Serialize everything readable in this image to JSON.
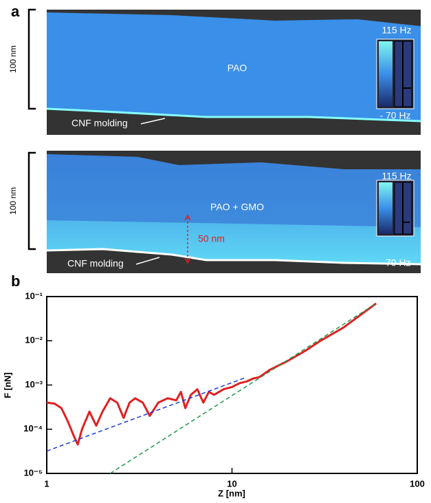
{
  "panel_a": {
    "label": "a",
    "images": [
      {
        "scale": "100 nm",
        "label": "PAO",
        "cbar_max": "115 Hz",
        "cbar_min": "- 70 Hz",
        "substrate": "CNF molding"
      },
      {
        "scale": "100 nm",
        "label": "PAO  + GMO",
        "cbar_max": "115 Hz",
        "cbar_min": "- 70 Hz",
        "substrate": "CNF molding",
        "thickness": "50 nm"
      }
    ]
  },
  "panel_b": {
    "label": "b"
  },
  "chart_data": {
    "type": "line",
    "x_label": "Z [nm]",
    "y_label": "F [nN]",
    "xscale": "log",
    "yscale": "log",
    "xlim": [
      1,
      100
    ],
    "ylim": [
      1e-05,
      0.1
    ],
    "xticks": [
      1,
      10,
      100
    ],
    "yticks": [
      {
        "value": 1e-05,
        "label": "10⁻⁵"
      },
      {
        "value": 0.0001,
        "label": "10⁻⁴"
      },
      {
        "value": 0.001,
        "label": "10⁻³"
      },
      {
        "value": 0.01,
        "label": "10⁻²"
      },
      {
        "value": 0.1,
        "label": "10⁻¹"
      }
    ],
    "series": [
      {
        "color": "#e02020",
        "style": "solid",
        "x": [
          1,
          1.1,
          1.2,
          1.3,
          1.4,
          1.47,
          1.55,
          1.7,
          1.85,
          2.0,
          2.2,
          2.4,
          2.6,
          2.8,
          3.0,
          3.3,
          3.6,
          4.0,
          4.5,
          5.0,
          5.3,
          5.6,
          6.0,
          6.5,
          7.0,
          7.5,
          8.0,
          9,
          10,
          11,
          12,
          13,
          14,
          16,
          20,
          25,
          30,
          40,
          50,
          60
        ],
        "values": [
          0.0004,
          0.00038,
          0.0003,
          0.00015,
          7e-05,
          4.5e-05,
          0.0001,
          0.00025,
          0.00012,
          0.00025,
          0.0005,
          0.0004,
          0.00018,
          0.0004,
          0.0005,
          0.0004,
          0.0002,
          0.0004,
          0.0005,
          0.00045,
          0.0007,
          0.0003,
          0.0006,
          0.0008,
          0.0004,
          0.0007,
          0.0006,
          0.0008,
          0.0009,
          0.0011,
          0.0012,
          0.0014,
          0.0015,
          0.0022,
          0.0035,
          0.006,
          0.01,
          0.02,
          0.04,
          0.07
        ]
      },
      {
        "color": "#1a3bd6",
        "style": "dashed",
        "x": [
          1,
          12
        ],
        "values": [
          3.2e-05,
          0.0015
        ]
      },
      {
        "color": "#1e9a4a",
        "style": "dashed",
        "x": [
          2.2,
          60
        ],
        "values": [
          1e-05,
          0.07
        ]
      }
    ]
  }
}
